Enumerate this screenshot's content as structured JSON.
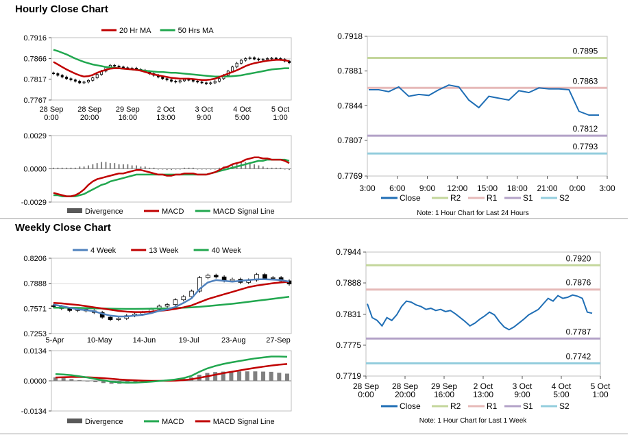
{
  "sections": {
    "hourly_title": "Hourly Close Chart",
    "weekly_title": "Weekly Close Chart"
  },
  "chart_data": [
    {
      "id": "hourly_price",
      "type": "candlestick",
      "y_ticks": [
        "0.7916",
        "0.7866",
        "0.7817",
        "0.7767"
      ],
      "ylim": [
        0.7767,
        0.7916
      ],
      "x_ticks": [
        "28 Sep\n0:00",
        "28 Sep\n20:00",
        "29 Sep\n16:00",
        "2 Oct\n13:00",
        "3 Oct\n9:00",
        "4 Oct\n5:00",
        "5 Oct\n1:00"
      ],
      "legend": [
        "20 Hr MA",
        "50 Hrs MA"
      ],
      "colors": {
        "ma_short": "#c00000",
        "ma_long": "#21a74f",
        "candle": "#000000"
      },
      "close": [
        0.783,
        0.7826,
        0.7822,
        0.7818,
        0.7815,
        0.7812,
        0.7808,
        0.781,
        0.7814,
        0.782,
        0.7828,
        0.7836,
        0.7845,
        0.785,
        0.7848,
        0.7846,
        0.7844,
        0.7842,
        0.7843,
        0.784,
        0.7838,
        0.7835,
        0.783,
        0.7826,
        0.7822,
        0.7818,
        0.7815,
        0.7812,
        0.781,
        0.7813,
        0.7816,
        0.7815,
        0.7812,
        0.781,
        0.7808,
        0.7806,
        0.7808,
        0.7812,
        0.7818,
        0.7826,
        0.7836,
        0.7846,
        0.7855,
        0.7862,
        0.7866,
        0.7868,
        0.7865,
        0.7863,
        0.7864,
        0.7866,
        0.7867,
        0.7866,
        0.7864,
        0.786,
        0.7856
      ],
      "ma20": [
        0.7858,
        0.7852,
        0.7846,
        0.784,
        0.7835,
        0.783,
        0.7826,
        0.7823,
        0.7824,
        0.7827,
        0.7832,
        0.7836,
        0.7839,
        0.7842,
        0.7843,
        0.7843,
        0.7842,
        0.7841,
        0.784,
        0.7839,
        0.7837,
        0.7834,
        0.7831,
        0.7828,
        0.7826,
        0.7824,
        0.7822,
        0.782,
        0.7819,
        0.7818,
        0.7818,
        0.7818,
        0.7817,
        0.7816,
        0.7815,
        0.7815,
        0.7816,
        0.7818,
        0.7822,
        0.7826,
        0.783,
        0.7834,
        0.7838,
        0.7843,
        0.7848,
        0.7852,
        0.7855,
        0.7857,
        0.7859,
        0.7861,
        0.7862,
        0.7863,
        0.7863,
        0.7862,
        0.786
      ],
      "ma50": [
        0.7887,
        0.7884,
        0.788,
        0.7876,
        0.7871,
        0.7866,
        0.7862,
        0.7858,
        0.7855,
        0.7852,
        0.785,
        0.7848,
        0.7846,
        0.7845,
        0.7844,
        0.7843,
        0.7842,
        0.7841,
        0.784,
        0.7839,
        0.7838,
        0.7837,
        0.7836,
        0.7835,
        0.7834,
        0.7834,
        0.7833,
        0.7832,
        0.7832,
        0.7831,
        0.783,
        0.7829,
        0.7828,
        0.7827,
        0.7826,
        0.7825,
        0.7824,
        0.7823,
        0.7823,
        0.7823,
        0.7823,
        0.7824,
        0.7825,
        0.7826,
        0.7828,
        0.783,
        0.7832,
        0.7834,
        0.7836,
        0.7838,
        0.784,
        0.7841,
        0.7842,
        0.7843,
        0.7843
      ]
    },
    {
      "id": "hourly_macd",
      "type": "line+bar",
      "y_ticks": [
        "0.0029",
        "0.0000",
        "-0.0029"
      ],
      "ylim": [
        -0.0029,
        0.0029
      ],
      "legend": [
        "Divergence",
        "MACD",
        "MACD Signal Line"
      ],
      "colors": {
        "divergence": "#808080",
        "macd": "#c00000",
        "signal": "#21a74f"
      },
      "macd": [
        -0.0021,
        -0.0022,
        -0.0023,
        -0.0024,
        -0.0024,
        -0.0023,
        -0.0021,
        -0.0018,
        -0.0014,
        -0.0011,
        -0.0009,
        -0.0008,
        -0.0007,
        -0.0006,
        -0.0005,
        -0.0004,
        -0.0004,
        -0.0003,
        -0.0002,
        -0.0001,
        -0.0001,
        -0.0002,
        -0.0003,
        -0.0004,
        -0.0005,
        -0.0005,
        -0.0006,
        -0.0006,
        -0.0005,
        -0.0005,
        -0.0004,
        -0.0004,
        -0.0004,
        -0.0005,
        -0.0005,
        -0.0005,
        -0.0004,
        -0.0003,
        -0.0001,
        0.0001,
        0.0002,
        0.0004,
        0.0005,
        0.0006,
        0.0008,
        0.0009,
        0.001,
        0.001,
        0.0009,
        0.0009,
        0.0008,
        0.0008,
        0.0008,
        0.0007,
        0.0005
      ],
      "signal": [
        -0.0023,
        -0.0023,
        -0.0024,
        -0.0024,
        -0.0024,
        -0.0024,
        -0.0023,
        -0.0022,
        -0.002,
        -0.0018,
        -0.0016,
        -0.0014,
        -0.0013,
        -0.0011,
        -0.001,
        -0.0009,
        -0.0008,
        -0.0007,
        -0.0006,
        -0.0005,
        -0.0005,
        -0.0005,
        -0.0005,
        -0.0005,
        -0.0005,
        -0.0005,
        -0.0005,
        -0.0005,
        -0.0005,
        -0.0005,
        -0.0005,
        -0.0005,
        -0.0005,
        -0.0005,
        -0.0005,
        -0.0005,
        -0.0004,
        -0.0003,
        -0.0002,
        -0.0001,
        0.0,
        0.0001,
        0.0002,
        0.0003,
        0.0004,
        0.0005,
        0.0006,
        0.0007,
        0.0007,
        0.0008,
        0.0008,
        0.0008,
        0.0008,
        0.0008,
        0.0007
      ],
      "divergence": [
        0.0001,
        0.0001,
        0.0001,
        0.0001,
        0.0001,
        0.0001,
        0.0002,
        0.0002,
        0.0003,
        0.0004,
        0.0005,
        0.0006,
        0.0006,
        0.0005,
        0.0005,
        0.0004,
        0.0004,
        0.0004,
        0.0003,
        0.0003,
        0.0002,
        0.0002,
        0.0001,
        0.0001,
        0.0,
        0.0,
        -0.0001,
        -0.0001,
        0.0,
        0.0,
        0.0001,
        0.0001,
        0.0001,
        0.0,
        0.0,
        0.0,
        0.0,
        0.0,
        0.0001,
        0.0002,
        0.0003,
        0.0004,
        0.0005,
        0.0006,
        0.0006,
        0.0005,
        0.0004,
        0.0003,
        0.0002,
        0.0001,
        0.0001,
        0.0001,
        0.0001,
        0.0,
        -0.0001
      ]
    },
    {
      "id": "hourly_levels",
      "type": "line",
      "y_ticks": [
        "0.7918",
        "0.7881",
        "0.7844",
        "0.7807",
        "0.7769"
      ],
      "ylim": [
        0.7769,
        0.7918
      ],
      "x_ticks": [
        "3:00",
        "6:00",
        "9:00",
        "12:00",
        "15:00",
        "18:00",
        "21:00",
        "0:00",
        "3:00"
      ],
      "legend": [
        "Close",
        "R2",
        "R1",
        "S1",
        "S2"
      ],
      "note": "Note: 1 Hour Chart for Last 24 Hours",
      "colors": {
        "close": "#1f6eb5",
        "r2": "#c3d69b",
        "r1": "#e6b9b8",
        "s1": "#b3a2c7",
        "s2": "#93cddd"
      },
      "levels": {
        "r2": 0.7895,
        "r1": 0.7863,
        "s1": 0.7812,
        "s2": 0.7793
      },
      "level_labels": {
        "r2": "0.7895",
        "r1": "0.7863",
        "s1": "0.7812",
        "s2": "0.7793"
      },
      "close": [
        0.7861,
        0.7861,
        0.7859,
        0.7864,
        0.7854,
        0.7856,
        0.7855,
        0.7861,
        0.7866,
        0.7864,
        0.785,
        0.7842,
        0.7854,
        0.7852,
        0.785,
        0.786,
        0.7858,
        0.7863,
        0.7862,
        0.7862,
        0.7861,
        0.7838,
        0.7834,
        0.7834
      ]
    },
    {
      "id": "weekly_price",
      "type": "candlestick",
      "y_ticks": [
        "0.8206",
        "0.7888",
        "0.7571",
        "0.7253"
      ],
      "ylim": [
        0.7253,
        0.8206
      ],
      "x_ticks": [
        "5-Apr",
        "10-May",
        "14-Jun",
        "19-Jul",
        "23-Aug",
        "27-Sep"
      ],
      "legend": [
        "4 Week",
        "13 Week",
        "40 Week"
      ],
      "colors": {
        "ma4": "#4f81bd",
        "ma13": "#c00000",
        "ma40": "#21a74f",
        "candle": "#000000"
      },
      "close": [
        0.7595,
        0.757,
        0.7545,
        0.756,
        0.754,
        0.752,
        0.746,
        0.743,
        0.7445,
        0.748,
        0.75,
        0.752,
        0.756,
        0.76,
        0.762,
        0.768,
        0.772,
        0.779,
        0.796,
        0.799,
        0.797,
        0.792,
        0.794,
        0.79,
        0.793,
        0.8,
        0.795,
        0.796,
        0.792,
        0.788
      ],
      "ma4": [
        0.762,
        0.76,
        0.758,
        0.756,
        0.755,
        0.7535,
        0.7505,
        0.748,
        0.747,
        0.747,
        0.748,
        0.749,
        0.751,
        0.754,
        0.756,
        0.759,
        0.764,
        0.77,
        0.782,
        0.79,
        0.793,
        0.792,
        0.791,
        0.792,
        0.793,
        0.794,
        0.794,
        0.7935,
        0.793,
        0.791
      ],
      "ma13": [
        0.764,
        0.7635,
        0.7625,
        0.7615,
        0.76,
        0.7585,
        0.757,
        0.7555,
        0.754,
        0.753,
        0.7525,
        0.7525,
        0.753,
        0.754,
        0.755,
        0.7565,
        0.7585,
        0.761,
        0.765,
        0.769,
        0.772,
        0.775,
        0.778,
        0.781,
        0.784,
        0.786,
        0.7875,
        0.789,
        0.79,
        0.791
      ],
      "ma40": [
        0.758,
        0.758,
        0.758,
        0.7578,
        0.7575,
        0.7572,
        0.757,
        0.7568,
        0.7566,
        0.7565,
        0.7565,
        0.7566,
        0.7568,
        0.757,
        0.7572,
        0.7575,
        0.758,
        0.7585,
        0.7592,
        0.76,
        0.761,
        0.762,
        0.763,
        0.7642,
        0.7655,
        0.7668,
        0.768,
        0.7692,
        0.7705,
        0.7718
      ]
    },
    {
      "id": "weekly_macd",
      "type": "line+bar",
      "y_ticks": [
        "0.0134",
        "0.0000",
        "-0.0134"
      ],
      "ylim": [
        -0.0134,
        0.0134
      ],
      "legend": [
        "Divergence",
        "MACD",
        "MACD Signal Line"
      ],
      "colors": {
        "divergence": "#808080",
        "macd": "#21a74f",
        "signal": "#c00000"
      },
      "macd": [
        0.003,
        0.0028,
        0.0025,
        0.002,
        0.0015,
        0.0008,
        0.0002,
        -0.0004,
        -0.0007,
        -0.0008,
        -0.0008,
        -0.0006,
        -0.0004,
        -0.0001,
        0.0002,
        0.0006,
        0.0012,
        0.0022,
        0.004,
        0.0055,
        0.0066,
        0.0075,
        0.0082,
        0.0088,
        0.0094,
        0.01,
        0.0104,
        0.0108,
        0.0108,
        0.0107
      ],
      "signal": [
        0.0015,
        0.0016,
        0.0017,
        0.0017,
        0.0016,
        0.0014,
        0.0012,
        0.0009,
        0.0006,
        0.0004,
        0.0002,
        0.0001,
        0.0,
        0.0,
        0.0,
        0.0001,
        0.0003,
        0.0007,
        0.0013,
        0.002,
        0.0027,
        0.0034,
        0.004,
        0.0046,
        0.0052,
        0.0058,
        0.0063,
        0.0068,
        0.0072,
        0.0075
      ],
      "divergence": [
        0.0015,
        0.0012,
        0.0008,
        0.0003,
        -0.0001,
        -0.0006,
        -0.001,
        -0.0013,
        -0.0013,
        -0.0012,
        -0.001,
        -0.0007,
        -0.0004,
        -0.0001,
        0.0002,
        0.0005,
        0.0009,
        0.0015,
        0.0027,
        0.0035,
        0.0039,
        0.0041,
        0.0042,
        0.0042,
        0.0042,
        0.0042,
        0.0041,
        0.004,
        0.0036,
        0.0032
      ]
    },
    {
      "id": "weekly_levels",
      "type": "line",
      "y_ticks": [
        "0.7944",
        "0.7888",
        "0.7831",
        "0.7775",
        "0.7719"
      ],
      "ylim": [
        0.7719,
        0.7944
      ],
      "x_ticks": [
        "28 Sep\n0:00",
        "28 Sep\n20:00",
        "29 Sep\n16:00",
        "2 Oct\n13:00",
        "3 Oct\n9:00",
        "4 Oct\n5:00",
        "5 Oct\n1:00"
      ],
      "legend": [
        "Close",
        "R2",
        "R1",
        "S1",
        "S2"
      ],
      "note": "Note: 1 Hour Chart for Last 1 Week",
      "colors": {
        "close": "#1f6eb5",
        "r2": "#c3d69b",
        "r1": "#e6b9b8",
        "s1": "#b3a2c7",
        "s2": "#93cddd"
      },
      "levels": {
        "r2": 0.792,
        "r1": 0.7876,
        "s1": 0.7787,
        "s2": 0.7742
      },
      "level_labels": {
        "r2": "0.7920",
        "r1": "0.7876",
        "s1": "0.7787",
        "s2": "0.7742"
      },
      "close": [
        0.785,
        0.7825,
        0.782,
        0.781,
        0.7825,
        0.782,
        0.783,
        0.7845,
        0.7855,
        0.7853,
        0.7848,
        0.7845,
        0.784,
        0.7842,
        0.7838,
        0.784,
        0.7836,
        0.7838,
        0.7832,
        0.7825,
        0.7818,
        0.781,
        0.7815,
        0.7822,
        0.7828,
        0.7835,
        0.783,
        0.7818,
        0.7808,
        0.7803,
        0.7808,
        0.7815,
        0.7822,
        0.783,
        0.7835,
        0.784,
        0.785,
        0.786,
        0.7855,
        0.7865,
        0.786,
        0.7862,
        0.7866,
        0.7864,
        0.786,
        0.7835,
        0.7833
      ]
    }
  ]
}
